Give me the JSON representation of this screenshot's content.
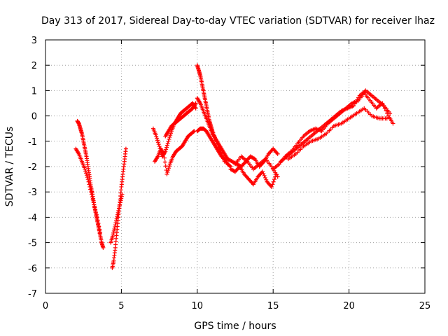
{
  "chart_data": {
    "type": "scatter",
    "title": "Day 313 of 2017, Sidereal Day-to-day VTEC variation (SDTVAR) for receiver lhaz",
    "xlabel": "GPS time / hours",
    "ylabel": "SDTVAR / TECUs",
    "xlim": [
      0,
      25
    ],
    "ylim": [
      -7,
      3
    ],
    "x_ticks": [
      "0",
      "5",
      "10",
      "15",
      "20",
      "25"
    ],
    "y_ticks": [
      "3",
      "2",
      "1",
      "0",
      "-1",
      "-2",
      "-3",
      "-4",
      "-5",
      "-6",
      "-7"
    ],
    "grid": true,
    "point_color": "#ff0000",
    "marker": "plus",
    "series": [
      {
        "x": [
          2.1,
          2.2,
          2.3,
          2.4,
          2.5,
          2.6,
          2.7,
          2.8,
          2.9,
          3.0,
          3.1,
          3.2,
          3.3,
          3.4,
          3.5,
          3.6,
          3.7,
          3.8
        ],
        "y": [
          -0.2,
          -0.3,
          -0.5,
          -0.7,
          -1.0,
          -1.3,
          -1.6,
          -2.0,
          -2.4,
          -2.8,
          -3.1,
          -3.5,
          -3.8,
          -4.1,
          -4.4,
          -4.7,
          -5.0,
          -5.2
        ]
      },
      {
        "x": [
          2.0,
          2.2,
          2.4,
          2.6,
          2.8,
          3.0,
          3.2,
          3.4,
          3.6
        ],
        "y": [
          -1.3,
          -1.5,
          -1.8,
          -2.1,
          -2.5,
          -3.0,
          -3.5,
          -4.0,
          -4.6
        ]
      },
      {
        "x": [
          4.4,
          4.5,
          4.6,
          4.7,
          4.8,
          4.9,
          5.0,
          5.1,
          5.2,
          5.3
        ],
        "y": [
          -6.0,
          -5.7,
          -5.2,
          -4.6,
          -4.0,
          -3.4,
          -2.8,
          -2.3,
          -1.8,
          -1.3
        ]
      },
      {
        "x": [
          4.3,
          4.45,
          4.6,
          4.75,
          4.9,
          5.05
        ],
        "y": [
          -5.0,
          -4.7,
          -4.3,
          -3.9,
          -3.5,
          -3.1
        ]
      },
      {
        "x": [
          7.1,
          7.3,
          7.5,
          7.7,
          7.9,
          8.1,
          8.3,
          8.5,
          8.7,
          8.9,
          9.1,
          9.3,
          9.5,
          9.7,
          9.9
        ],
        "y": [
          -0.5,
          -0.8,
          -1.2,
          -1.6,
          -1.4,
          -1.0,
          -0.6,
          -0.3,
          -0.1,
          0.1,
          0.2,
          0.3,
          0.4,
          0.5,
          0.3
        ]
      },
      {
        "x": [
          7.2,
          7.4,
          7.6,
          7.8,
          8.0,
          8.2,
          8.4,
          8.6,
          8.8,
          9.0,
          9.2,
          9.4,
          9.6,
          9.8
        ],
        "y": [
          -1.8,
          -1.6,
          -1.3,
          -1.5,
          -2.3,
          -1.9,
          -1.6,
          -1.4,
          -1.3,
          -1.2,
          -1.0,
          -0.8,
          -0.7,
          -0.6
        ]
      },
      {
        "x": [
          7.9,
          8.1,
          8.3,
          8.5,
          8.7,
          8.9,
          9.1,
          9.3,
          9.5,
          9.7,
          9.9
        ],
        "y": [
          -0.8,
          -0.6,
          -0.4,
          -0.3,
          -0.2,
          -0.1,
          0.0,
          0.1,
          0.2,
          0.3,
          0.5
        ]
      },
      {
        "x": [
          10.0,
          10.1,
          10.2,
          10.3,
          10.4,
          10.5,
          10.6,
          10.7,
          10.8,
          10.9,
          11.0,
          11.2,
          11.4,
          11.6,
          11.8
        ],
        "y": [
          2.0,
          1.8,
          1.6,
          1.3,
          1.0,
          0.7,
          0.4,
          0.1,
          -0.2,
          -0.4,
          -0.6,
          -0.9,
          -1.2,
          -1.5,
          -1.8
        ]
      },
      {
        "x": [
          10.0,
          10.2,
          10.4,
          10.6,
          10.8,
          11.0,
          11.2,
          11.4,
          11.6,
          11.8,
          12.0
        ],
        "y": [
          0.7,
          0.5,
          0.2,
          -0.1,
          -0.4,
          -0.7,
          -0.9,
          -1.1,
          -1.3,
          -1.5,
          -1.7
        ]
      },
      {
        "x": [
          10.0,
          10.2,
          10.4,
          10.6,
          10.8,
          11.0,
          11.2,
          11.4,
          11.6,
          11.8,
          12.0,
          12.2
        ],
        "y": [
          -0.6,
          -0.5,
          -0.5,
          -0.6,
          -0.8,
          -1.0,
          -1.2,
          -1.4,
          -1.6,
          -1.7,
          -1.9,
          -2.0
        ]
      },
      {
        "x": [
          12.0,
          12.3,
          12.6,
          12.9,
          13.2,
          13.5,
          13.8,
          14.1,
          14.4,
          14.7,
          15.0,
          15.3
        ],
        "y": [
          -1.7,
          -1.8,
          -1.9,
          -2.0,
          -1.8,
          -1.6,
          -1.7,
          -2.0,
          -1.8,
          -1.5,
          -1.3,
          -1.5
        ]
      },
      {
        "x": [
          12.2,
          12.5,
          12.8,
          13.1,
          13.4,
          13.7,
          14.0,
          14.3,
          14.6,
          14.9,
          15.2
        ],
        "y": [
          -2.1,
          -2.2,
          -2.0,
          -2.3,
          -2.5,
          -2.7,
          -2.4,
          -2.2,
          -2.6,
          -2.8,
          -2.3
        ]
      },
      {
        "x": [
          12.5,
          12.9,
          13.3,
          13.7,
          14.1,
          14.5,
          14.9,
          15.3
        ],
        "y": [
          -1.9,
          -1.6,
          -1.8,
          -2.1,
          -1.9,
          -1.7,
          -2.0,
          -2.4
        ]
      },
      {
        "x": [
          15.0,
          15.4,
          15.8,
          16.2,
          16.6,
          17.0,
          17.4,
          17.8,
          18.2,
          18.6,
          19.0,
          19.4,
          19.8,
          20.2,
          20.6,
          21.0,
          21.4,
          21.8,
          22.2,
          22.6,
          22.9
        ],
        "y": [
          -2.1,
          -1.9,
          -1.6,
          -1.4,
          -1.1,
          -0.8,
          -0.6,
          -0.5,
          -0.6,
          -0.3,
          -0.1,
          0.1,
          0.3,
          0.5,
          0.6,
          0.9,
          0.6,
          0.3,
          0.5,
          0.0,
          -0.3
        ]
      },
      {
        "x": [
          15.5,
          15.9,
          16.3,
          16.7,
          17.1,
          17.5,
          17.9,
          18.3,
          18.7,
          19.1,
          19.5,
          19.9,
          20.3,
          20.7,
          21.1,
          21.5,
          21.9,
          22.3,
          22.7
        ],
        "y": [
          -1.8,
          -1.6,
          -1.4,
          -1.2,
          -1.0,
          -0.8,
          -0.6,
          -0.4,
          -0.2,
          0.0,
          0.2,
          0.3,
          0.4,
          0.8,
          1.0,
          0.8,
          0.6,
          0.4,
          0.1
        ]
      },
      {
        "x": [
          16.0,
          16.5,
          17.0,
          17.5,
          18.0,
          18.5,
          19.0,
          19.5,
          20.0,
          20.5,
          21.0,
          21.5,
          22.0,
          22.5
        ],
        "y": [
          -1.7,
          -1.5,
          -1.2,
          -1.0,
          -0.9,
          -0.7,
          -0.4,
          -0.3,
          -0.1,
          0.1,
          0.3,
          0.0,
          -0.1,
          -0.1
        ]
      }
    ]
  }
}
